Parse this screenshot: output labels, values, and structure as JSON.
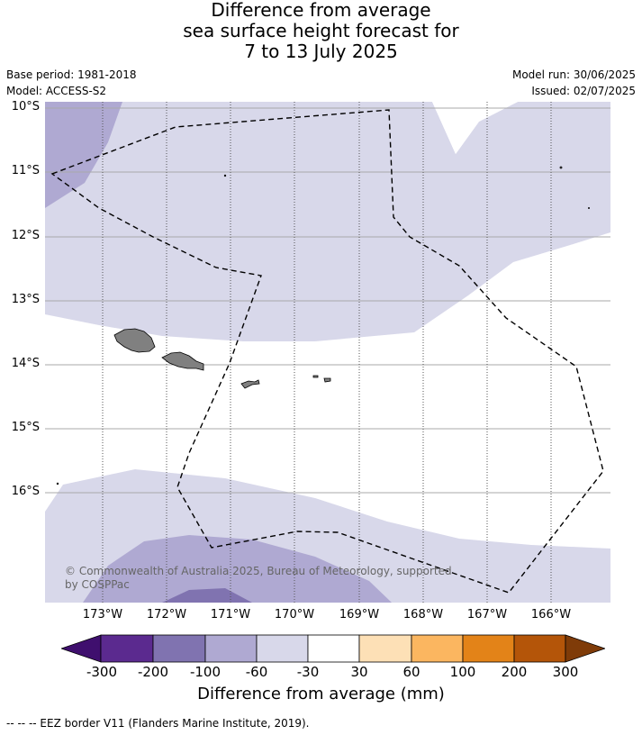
{
  "title": {
    "line1": "Difference from average",
    "line2": "sea surface height forecast for",
    "line3": "7 to 13 July 2025"
  },
  "meta": {
    "base_period": "Base period: 1981-2018",
    "model": "Model: ACCESS-S2",
    "model_run": "Model run: 30/06/2025",
    "issued": "Issued: 02/07/2025"
  },
  "map": {
    "lat_labels": [
      "10°S",
      "11°S",
      "12°S",
      "13°S",
      "14°S",
      "15°S",
      "16°S"
    ],
    "lon_labels": [
      "173°W",
      "172°W",
      "171°W",
      "170°W",
      "169°W",
      "168°W",
      "167°W",
      "166°W"
    ],
    "copyright_line1": "© Commonwealth of Australia 2025, Bureau of Meteorology, supported",
    "copyright_line2": "by COSPPac",
    "colors": {
      "cat_-100_-60": "#d8d8ea",
      "cat_-200_-100": "#afa9d2",
      "cat_-300_-200": "#8073b0",
      "land": "#808080",
      "grid": "#a9a9a9"
    }
  },
  "colorbar": {
    "ticks": [
      "-300",
      "-200",
      "-100",
      "-60",
      "-30",
      "30",
      "60",
      "100",
      "200",
      "300"
    ],
    "colors": [
      "#3f0f6e",
      "#5b2a8f",
      "#8073b0",
      "#afa9d2",
      "#d8d8ea",
      "#ffffff",
      "#fde0b6",
      "#fbb660",
      "#e38318",
      "#b45509",
      "#7f3b08"
    ],
    "label": "Difference from average (mm)"
  },
  "legend_note": "--  --  -- EEZ border V11 (Flanders Marine Institute, 2019)."
}
